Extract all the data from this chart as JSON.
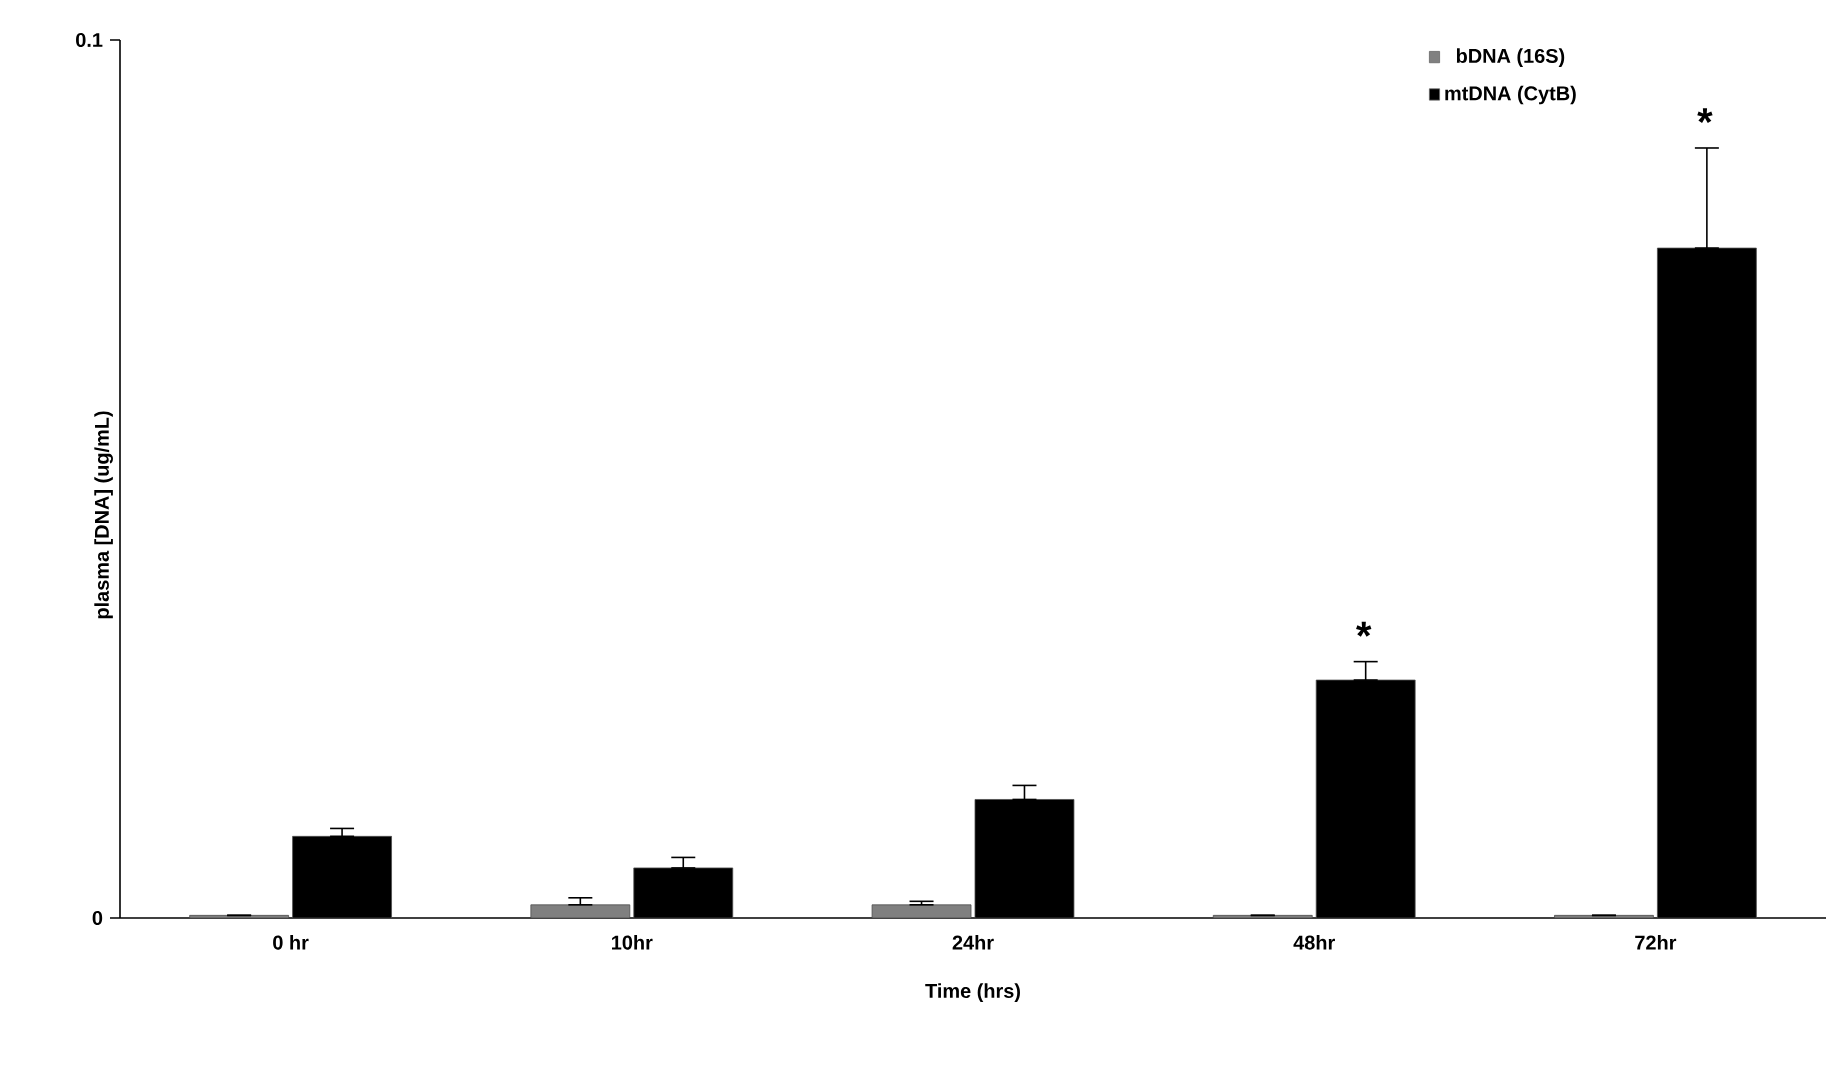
{
  "chart_data": {
    "type": "bar",
    "xlabel": "Time (hrs)",
    "ylabel": "plasma [DNA] (ug/mL)",
    "categories": [
      "0 hr",
      "10hr",
      "24hr",
      "48hr",
      "72hr"
    ],
    "ylim": [
      0,
      0.1
    ],
    "yticks": [
      0,
      0.1
    ],
    "legend": "top right",
    "grid": false,
    "series": [
      {
        "name": "bDNA (16S)",
        "color": "#808080",
        "values": [
          0.0003,
          0.0015,
          0.0015,
          0.0003,
          0.0003
        ],
        "errors": [
          null,
          [
            0.0015,
            0.0023
          ],
          [
            0.0015,
            0.0019
          ],
          null,
          null
        ]
      },
      {
        "name": "mtDNA (CytB)",
        "color": "#000000",
        "values": [
          0.0093,
          0.0057,
          0.0135,
          0.0271,
          0.0763
        ],
        "errors": [
          [
            0.0093,
            0.0102
          ],
          [
            0.0057,
            0.0069
          ],
          [
            0.0135,
            0.0151
          ],
          [
            0.0271,
            0.0292
          ],
          [
            0.0763,
            0.0877
          ]
        ]
      }
    ],
    "annotations": [
      "*",
      "*"
    ]
  }
}
